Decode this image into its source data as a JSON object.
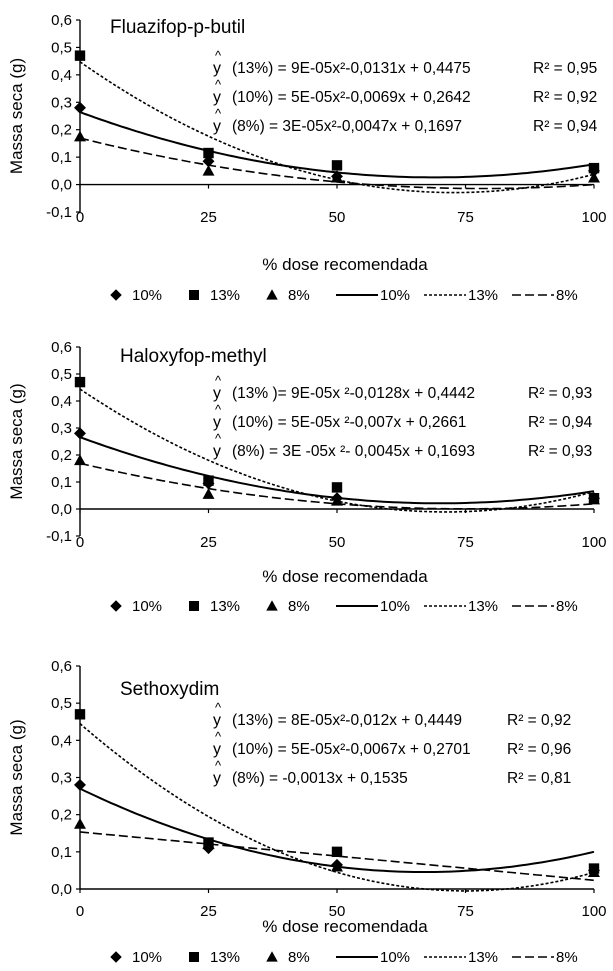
{
  "chart_data": [
    {
      "type": "scatter",
      "title": "Fluazifop-p-butil",
      "xlabel": "% dose recomendada",
      "ylabel": "Massa seca (g)",
      "x_ticks": [
        "0",
        "25",
        "50",
        "75",
        "100"
      ],
      "y_ticks": [
        "-0,1",
        "0,0",
        "0,1",
        "0,2",
        "0,3",
        "0,4",
        "0,5",
        "0,6"
      ],
      "xlim": [
        0,
        100
      ],
      "ylim": [
        -0.1,
        0.6
      ],
      "series": [
        {
          "name": "10%",
          "marker": "diamond",
          "x": [
            0,
            25,
            50,
            100
          ],
          "y": [
            0.28,
            0.085,
            0.03,
            0.05
          ]
        },
        {
          "name": "13%",
          "marker": "square",
          "x": [
            0,
            25,
            50,
            100
          ],
          "y": [
            0.47,
            0.115,
            0.07,
            0.06
          ]
        },
        {
          "name": "8%",
          "marker": "triangle",
          "x": [
            0,
            25,
            50,
            100
          ],
          "y": [
            0.175,
            0.05,
            0.025,
            0.025
          ]
        }
      ],
      "fits": [
        {
          "name": "10%",
          "style": "solid",
          "a": 5e-05,
          "b": -0.0069,
          "c": 0.2642
        },
        {
          "name": "13%",
          "style": "dotted",
          "a": 9e-05,
          "b": -0.0131,
          "c": 0.4475
        },
        {
          "name": "8%",
          "style": "dashed",
          "a": 3e-05,
          "b": -0.0047,
          "c": 0.1697
        }
      ],
      "equations": [
        {
          "label": "(13%) = 9E-05x²-0,0131x + 0,4475",
          "r2": "R² = 0,95"
        },
        {
          "label": "(10%) = 5E-05x²-0,0069x + 0,2642",
          "r2": "R² = 0,92"
        },
        {
          "label": "(8%)   = 3E-05x²-0,0047x + 0,1697",
          "r2": "R² = 0,94"
        }
      ]
    },
    {
      "type": "scatter",
      "title": "Haloxyfop-methyl",
      "xlabel": "% dose recomendada",
      "ylabel": "Massa seca (g)",
      "x_ticks": [
        "0",
        "25",
        "50",
        "75",
        "100"
      ],
      "y_ticks": [
        "-0,1",
        "0,0",
        "0,1",
        "0,2",
        "0,3",
        "0,4",
        "0,5",
        "0,6"
      ],
      "xlim": [
        0,
        100
      ],
      "ylim": [
        -0.1,
        0.6
      ],
      "series": [
        {
          "name": "10%",
          "marker": "diamond",
          "x": [
            0,
            25,
            50,
            100
          ],
          "y": [
            0.28,
            0.095,
            0.04,
            0.04
          ]
        },
        {
          "name": "13%",
          "marker": "square",
          "x": [
            0,
            25,
            50,
            100
          ],
          "y": [
            0.47,
            0.105,
            0.08,
            0.04
          ]
        },
        {
          "name": "8%",
          "marker": "triangle",
          "x": [
            0,
            25,
            50,
            100
          ],
          "y": [
            0.18,
            0.055,
            0.03,
            0.035
          ]
        }
      ],
      "fits": [
        {
          "name": "10%",
          "style": "solid",
          "a": 5e-05,
          "b": -0.007,
          "c": 0.2661
        },
        {
          "name": "13%",
          "style": "dotted",
          "a": 9e-05,
          "b": -0.0128,
          "c": 0.4442
        },
        {
          "name": "8%",
          "style": "dashed",
          "a": 3e-05,
          "b": -0.0045,
          "c": 0.1693
        }
      ],
      "equations": [
        {
          "label": "(13% )= 9E-05x ²-0,0128x + 0,4442",
          "r2": "R² = 0,93"
        },
        {
          "label": "(10%) = 5E-05x ²-0,007x + 0,2661",
          "r2": "R² = 0,94"
        },
        {
          "label": "(8%) = 3E -05x ²- 0,0045x + 0,1693",
          "r2": "R² = 0,93"
        }
      ]
    },
    {
      "type": "scatter",
      "title": "Sethoxydim",
      "xlabel": "% dose recomendada",
      "ylabel": "Massa seca (g)",
      "x_ticks": [
        "0",
        "25",
        "50",
        "75",
        "100"
      ],
      "y_ticks": [
        "0,0",
        "0,1",
        "0,2",
        "0,3",
        "0,4",
        "0,5",
        "0,6"
      ],
      "xlim": [
        0,
        100
      ],
      "ylim": [
        0,
        0.6
      ],
      "series": [
        {
          "name": "10%",
          "marker": "diamond",
          "x": [
            0,
            25,
            50,
            100
          ],
          "y": [
            0.28,
            0.11,
            0.065,
            0.05
          ]
        },
        {
          "name": "13%",
          "marker": "square",
          "x": [
            0,
            25,
            50,
            100
          ],
          "y": [
            0.47,
            0.125,
            0.1,
            0.055
          ]
        },
        {
          "name": "8%",
          "marker": "triangle",
          "x": [
            0,
            25,
            50,
            100
          ],
          "y": [
            0.175,
            0.12,
            0.06,
            0.045
          ]
        }
      ],
      "fits": [
        {
          "name": "10%",
          "style": "solid",
          "a": 5e-05,
          "b": -0.0067,
          "c": 0.2701
        },
        {
          "name": "13%",
          "style": "dotted",
          "a": 8e-05,
          "b": -0.012,
          "c": 0.4449
        },
        {
          "name": "8%",
          "style": "dashed",
          "a": 0,
          "b": -0.0013,
          "c": 0.1535
        }
      ],
      "equations": [
        {
          "label": "(13%) = 8E-05x²-0,012x + 0,4449",
          "r2": "R² = 0,92"
        },
        {
          "label": "(10%) = 5E-05x²-0,0067x + 0,2701",
          "r2": "R² = 0,96"
        },
        {
          "label": "(8%) = -0,0013x + 0,1535",
          "r2": "R² = 0,81"
        }
      ]
    }
  ]
}
